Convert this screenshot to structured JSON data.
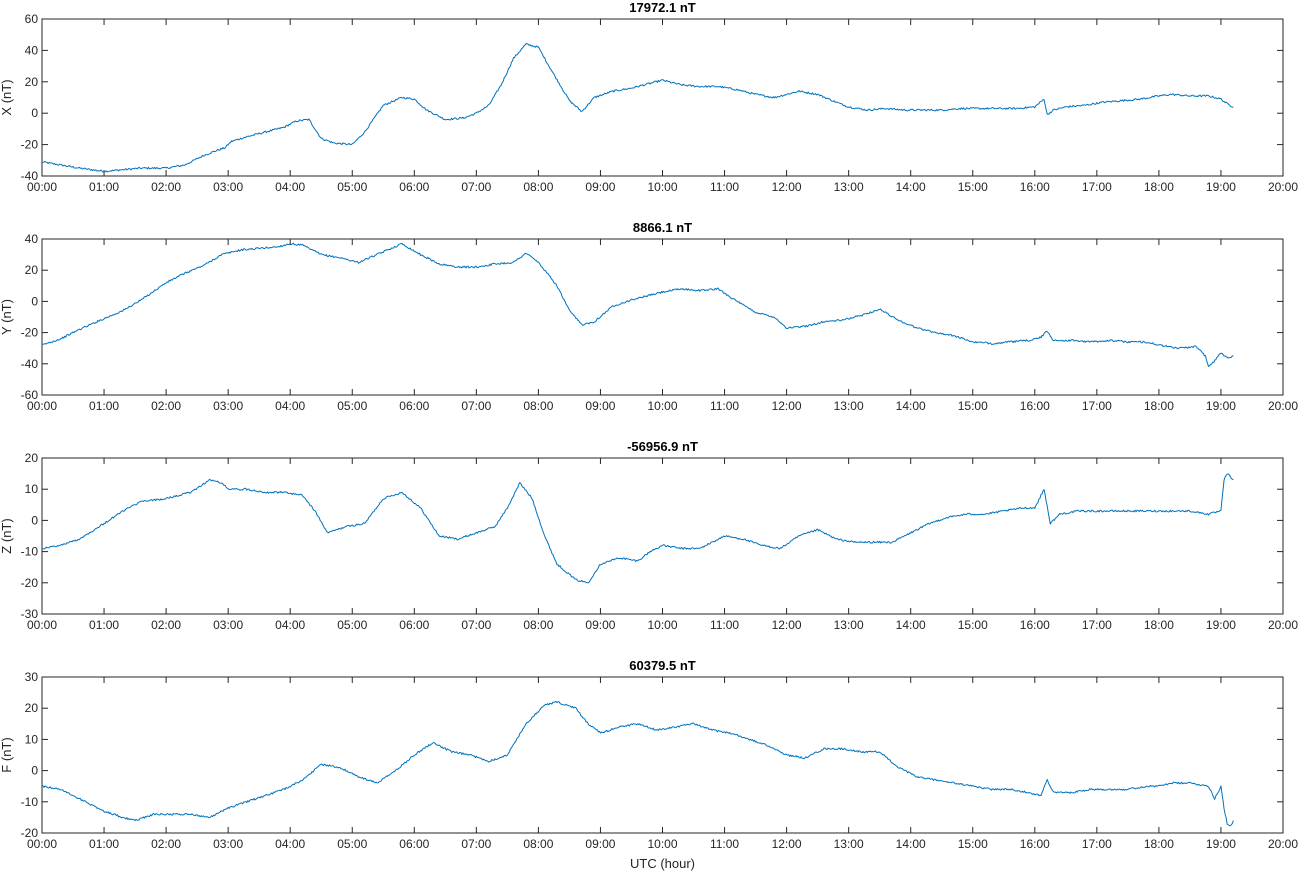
{
  "chart_data": [
    {
      "type": "line",
      "title": "17972.1 nT",
      "ylabel": "X (nT)",
      "xlabel": "",
      "ylim": [
        -40,
        60
      ],
      "yticks": [
        "-40",
        "-20",
        "0",
        "20",
        "40",
        "60"
      ],
      "xlim": [
        0,
        20
      ],
      "xticks": [
        "00:00",
        "01:00",
        "02:00",
        "03:00",
        "04:00",
        "05:00",
        "06:00",
        "07:00",
        "08:00",
        "09:00",
        "10:00",
        "11:00",
        "12:00",
        "13:00",
        "14:00",
        "15:00",
        "16:00",
        "17:00",
        "18:00",
        "19:00",
        "20:00"
      ],
      "series": [
        {
          "color": "#0072BD",
          "x": [
            0,
            0.3,
            0.6,
            1.0,
            1.3,
            1.6,
            2.0,
            2.3,
            2.6,
            2.8,
            2.95,
            3.05,
            3.3,
            3.6,
            3.9,
            4.1,
            4.3,
            4.5,
            4.7,
            5.0,
            5.2,
            5.5,
            5.8,
            6.0,
            6.2,
            6.5,
            6.8,
            7.0,
            7.2,
            7.4,
            7.6,
            7.8,
            8.0,
            8.2,
            8.5,
            8.7,
            8.9,
            9.2,
            9.5,
            9.8,
            10.0,
            10.3,
            10.6,
            10.9,
            11.2,
            11.5,
            11.8,
            12.0,
            12.2,
            12.5,
            12.8,
            13.0,
            13.3,
            13.6,
            13.9,
            14.2,
            14.5,
            14.8,
            15.1,
            15.4,
            15.7,
            16.0,
            16.15,
            16.2,
            16.3,
            16.5,
            16.8,
            17.1,
            17.4,
            17.7,
            18.0,
            18.2,
            18.5,
            18.8,
            19.0,
            19.1,
            19.2
          ],
          "values": [
            -31,
            -33,
            -35,
            -37,
            -36,
            -35,
            -35,
            -33,
            -27,
            -24,
            -22,
            -18,
            -15,
            -12,
            -9,
            -5,
            -4,
            -16,
            -19,
            -20,
            -12,
            5,
            10,
            9,
            2,
            -4,
            -3,
            0,
            5,
            18,
            35,
            44,
            42,
            28,
            8,
            1,
            10,
            14,
            16,
            19,
            21,
            18,
            17,
            17,
            15,
            12,
            10,
            12,
            14,
            12,
            7,
            4,
            2,
            3,
            2,
            2,
            2,
            3,
            3,
            3,
            3,
            4,
            9,
            -1,
            2,
            4,
            5,
            7,
            8,
            9,
            11,
            12,
            11,
            11,
            9,
            6,
            4
          ]
        }
      ]
    },
    {
      "type": "line",
      "title": "8866.1 nT",
      "ylabel": "Y (nT)",
      "xlabel": "",
      "ylim": [
        -60,
        40
      ],
      "yticks": [
        "-60",
        "-40",
        "-20",
        "0",
        "20",
        "40"
      ],
      "xlim": [
        0,
        20
      ],
      "xticks": [
        "00:00",
        "01:00",
        "02:00",
        "03:00",
        "04:00",
        "05:00",
        "06:00",
        "07:00",
        "08:00",
        "09:00",
        "10:00",
        "11:00",
        "12:00",
        "13:00",
        "14:00",
        "15:00",
        "16:00",
        "17:00",
        "18:00",
        "19:00",
        "20:00"
      ],
      "series": [
        {
          "color": "#0072BD",
          "x": [
            0,
            0.3,
            0.6,
            1.0,
            1.3,
            1.6,
            2.0,
            2.3,
            2.6,
            2.9,
            3.2,
            3.5,
            3.8,
            4.0,
            4.2,
            4.5,
            4.8,
            5.1,
            5.4,
            5.8,
            6.1,
            6.4,
            6.7,
            7.0,
            7.3,
            7.6,
            7.8,
            8.0,
            8.3,
            8.5,
            8.7,
            8.9,
            9.2,
            9.5,
            9.8,
            10.0,
            10.3,
            10.6,
            10.9,
            11.2,
            11.5,
            11.8,
            12.0,
            12.3,
            12.6,
            12.9,
            13.2,
            13.5,
            13.8,
            14.1,
            14.4,
            14.7,
            15.0,
            15.3,
            15.6,
            15.9,
            16.1,
            16.2,
            16.3,
            16.6,
            16.9,
            17.2,
            17.5,
            17.8,
            18.0,
            18.3,
            18.6,
            18.75,
            18.8,
            18.9,
            19.0,
            19.1,
            19.2
          ],
          "values": [
            -28,
            -24,
            -18,
            -11,
            -6,
            1,
            12,
            18,
            23,
            30,
            33,
            34,
            35,
            37,
            36,
            30,
            28,
            25,
            30,
            37,
            30,
            24,
            22,
            22,
            24,
            25,
            31,
            25,
            10,
            -6,
            -15,
            -13,
            -3,
            1,
            4,
            6,
            8,
            7,
            8,
            0,
            -7,
            -10,
            -17,
            -16,
            -13,
            -12,
            -9,
            -5,
            -12,
            -17,
            -20,
            -22,
            -26,
            -27,
            -26,
            -25,
            -23,
            -19,
            -25,
            -25,
            -26,
            -25,
            -26,
            -26,
            -28,
            -30,
            -29,
            -35,
            -42,
            -38,
            -33,
            -36,
            -35
          ]
        }
      ]
    },
    {
      "type": "line",
      "title": "-56956.9 nT",
      "ylabel": "Z (nT)",
      "xlabel": "",
      "ylim": [
        -30,
        20
      ],
      "yticks": [
        "-30",
        "-20",
        "-10",
        "0",
        "10",
        "20"
      ],
      "xlim": [
        0,
        20
      ],
      "xticks": [
        "00:00",
        "01:00",
        "02:00",
        "03:00",
        "04:00",
        "05:00",
        "06:00",
        "07:00",
        "08:00",
        "09:00",
        "10:00",
        "11:00",
        "12:00",
        "13:00",
        "14:00",
        "15:00",
        "16:00",
        "17:00",
        "18:00",
        "19:00",
        "20:00"
      ],
      "series": [
        {
          "color": "#0072BD",
          "x": [
            0,
            0.3,
            0.6,
            1.0,
            1.3,
            1.6,
            2.0,
            2.4,
            2.7,
            2.9,
            3.0,
            3.3,
            3.6,
            3.9,
            4.2,
            4.4,
            4.6,
            4.9,
            5.2,
            5.5,
            5.8,
            6.1,
            6.4,
            6.7,
            7.0,
            7.3,
            7.5,
            7.7,
            7.9,
            8.1,
            8.3,
            8.6,
            8.8,
            9.0,
            9.3,
            9.6,
            9.8,
            10.0,
            10.3,
            10.6,
            11.0,
            11.3,
            11.6,
            11.9,
            12.2,
            12.5,
            12.8,
            13.1,
            13.4,
            13.7,
            14.0,
            14.3,
            14.6,
            14.9,
            15.2,
            15.5,
            15.8,
            16.0,
            16.15,
            16.25,
            16.4,
            16.7,
            17.0,
            17.3,
            17.6,
            17.9,
            18.2,
            18.5,
            18.8,
            19.0,
            19.05,
            19.1,
            19.2
          ],
          "values": [
            -9,
            -8,
            -6,
            -1,
            3,
            6,
            7,
            9,
            13,
            12,
            10,
            10,
            9,
            9,
            8,
            3,
            -4,
            -2,
            -1,
            7,
            9,
            4,
            -5,
            -6,
            -4,
            -2,
            4,
            12,
            7,
            -5,
            -14,
            -19,
            -20,
            -14,
            -12,
            -13,
            -10,
            -8,
            -9,
            -9,
            -5,
            -6,
            -8,
            -9,
            -5,
            -3,
            -6,
            -7,
            -7,
            -7,
            -4,
            -1,
            1,
            2,
            2,
            3,
            4,
            4,
            10,
            -1,
            2,
            3,
            3,
            3,
            3,
            3,
            3,
            3,
            2,
            3,
            13,
            15,
            13
          ]
        }
      ]
    },
    {
      "type": "line",
      "title": "60379.5 nT",
      "ylabel": "F (nT)",
      "xlabel": "UTC (hour)",
      "ylim": [
        -20,
        30
      ],
      "yticks": [
        "-20",
        "-10",
        "0",
        "10",
        "20",
        "30"
      ],
      "xlim": [
        0,
        20
      ],
      "xticks": [
        "00:00",
        "01:00",
        "02:00",
        "03:00",
        "04:00",
        "05:00",
        "06:00",
        "07:00",
        "08:00",
        "09:00",
        "10:00",
        "11:00",
        "12:00",
        "13:00",
        "14:00",
        "15:00",
        "16:00",
        "17:00",
        "18:00",
        "19:00",
        "20:00"
      ],
      "series": [
        {
          "color": "#0072BD",
          "x": [
            0,
            0.3,
            0.6,
            1.0,
            1.3,
            1.5,
            1.8,
            2.1,
            2.4,
            2.7,
            3.0,
            3.3,
            3.6,
            3.9,
            4.2,
            4.5,
            4.8,
            5.1,
            5.4,
            5.7,
            6.0,
            6.3,
            6.6,
            6.9,
            7.2,
            7.5,
            7.8,
            8.1,
            8.3,
            8.6,
            8.8,
            9.0,
            9.3,
            9.6,
            9.9,
            10.2,
            10.5,
            10.8,
            11.1,
            11.4,
            11.7,
            12.0,
            12.3,
            12.6,
            12.9,
            13.2,
            13.5,
            13.8,
            14.1,
            14.4,
            14.7,
            15.0,
            15.3,
            15.6,
            15.9,
            16.1,
            16.2,
            16.3,
            16.6,
            16.9,
            17.2,
            17.5,
            17.8,
            18.0,
            18.2,
            18.5,
            18.8,
            18.9,
            19.0,
            19.05,
            19.1,
            19.15,
            19.2
          ],
          "values": [
            -5,
            -6,
            -9,
            -13,
            -15,
            -16,
            -14,
            -14,
            -14,
            -15,
            -12,
            -10,
            -8,
            -6,
            -3,
            2,
            1,
            -2,
            -4,
            0,
            5,
            9,
            6,
            5,
            3,
            5,
            15,
            21,
            22,
            20,
            15,
            12,
            14,
            15,
            13,
            14,
            15,
            13,
            12,
            10,
            8,
            5,
            4,
            7,
            7,
            6,
            6,
            1,
            -2,
            -3,
            -4,
            -5,
            -6,
            -6,
            -7,
            -8,
            -3,
            -7,
            -7,
            -6,
            -6,
            -6,
            -5,
            -5,
            -4,
            -4,
            -5,
            -9,
            -5,
            -12,
            -17,
            -18,
            -16
          ]
        }
      ]
    }
  ]
}
